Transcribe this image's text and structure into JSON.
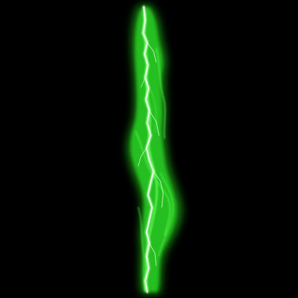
{
  "scene": {
    "subject": "green-lightning-bolt",
    "orientation": "vertical",
    "colors": {
      "background": "#000000",
      "glow_outer": "#1ea81a",
      "glow_mid": "#2fd12a",
      "glow_inner": "#5cff4e",
      "core": "#e9ffe2"
    }
  }
}
